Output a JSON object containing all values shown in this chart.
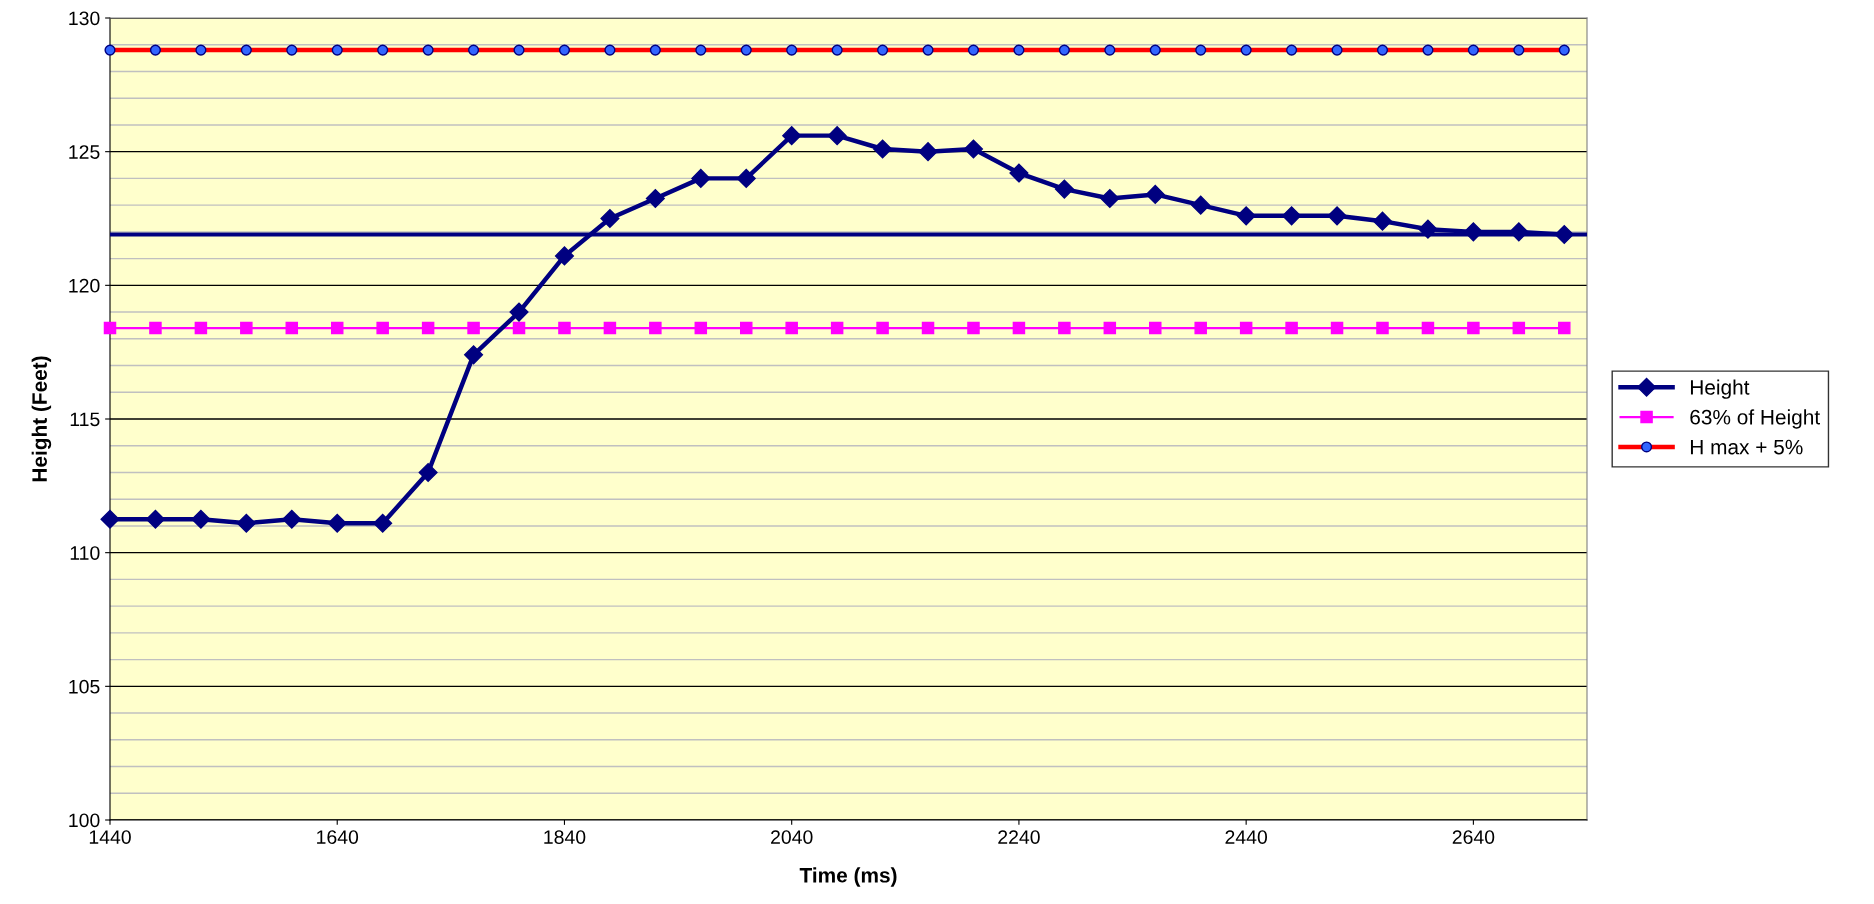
{
  "chart_data": {
    "type": "line",
    "xlabel": "Time (ms)",
    "ylabel": "Height (Feet)",
    "x": [
      1440,
      1480,
      1520,
      1560,
      1600,
      1640,
      1680,
      1720,
      1760,
      1800,
      1840,
      1880,
      1920,
      1960,
      2000,
      2040,
      2080,
      2120,
      2160,
      2200,
      2240,
      2280,
      2320,
      2360,
      2400,
      2440,
      2480,
      2520,
      2560,
      2600,
      2640,
      2680,
      2720
    ],
    "series": [
      {
        "name": "Height",
        "color": "#000080",
        "marker": "diamond",
        "values": [
          111.25,
          111.25,
          111.25,
          111.1,
          111.25,
          111.1,
          111.1,
          113.0,
          117.4,
          119.0,
          121.1,
          122.5,
          123.25,
          124.0,
          124.0,
          125.6,
          125.6,
          125.1,
          125.0,
          125.1,
          124.2,
          123.6,
          123.25,
          123.4,
          123.0,
          122.6,
          122.6,
          122.6,
          122.4,
          122.1,
          122.0,
          122.0,
          121.9
        ]
      },
      {
        "name": "63% of Height",
        "color": "#ff00ff",
        "marker": "square",
        "values": [
          118.4,
          118.4,
          118.4,
          118.4,
          118.4,
          118.4,
          118.4,
          118.4,
          118.4,
          118.4,
          118.4,
          118.4,
          118.4,
          118.4,
          118.4,
          118.4,
          118.4,
          118.4,
          118.4,
          118.4,
          118.4,
          118.4,
          118.4,
          118.4,
          118.4,
          118.4,
          118.4,
          118.4,
          118.4,
          118.4,
          118.4,
          118.4,
          118.4
        ]
      },
      {
        "name": "H max + 5%",
        "color": "#ff0000",
        "marker": "circle",
        "values": [
          128.8,
          128.8,
          128.8,
          128.8,
          128.8,
          128.8,
          128.8,
          128.8,
          128.8,
          128.8,
          128.8,
          128.8,
          128.8,
          128.8,
          128.8,
          128.8,
          128.8,
          128.8,
          128.8,
          128.8,
          128.8,
          128.8,
          128.8,
          128.8,
          128.8,
          128.8,
          128.8,
          128.8,
          128.8,
          128.8,
          128.8,
          128.8,
          128.8
        ]
      }
    ],
    "ref_lines": [
      {
        "axis": "y",
        "value": 121.9,
        "color": "#000080"
      }
    ],
    "xlim": [
      1440,
      2740
    ],
    "xticks": [
      1440,
      1640,
      1840,
      2040,
      2240,
      2440,
      2640
    ],
    "ylim": [
      100,
      130
    ],
    "yticks": [
      100,
      {
        "value": 101,
        "label": null
      },
      {
        "value": 102,
        "label": null
      },
      {
        "value": 103,
        "label": null
      },
      {
        "value": 104,
        "label": null
      },
      105,
      {
        "value": 106,
        "label": null
      },
      {
        "value": 107,
        "label": null
      },
      {
        "value": 108,
        "label": null
      },
      {
        "value": 109,
        "label": null
      },
      110,
      {
        "value": 111,
        "label": null
      },
      {
        "value": 112,
        "label": null
      },
      {
        "value": 113,
        "label": null
      },
      {
        "value": 114,
        "label": null
      },
      115,
      {
        "value": 116,
        "label": null
      },
      {
        "value": 117,
        "label": null
      },
      {
        "value": 118,
        "label": null
      },
      {
        "value": 119,
        "label": null
      },
      120,
      {
        "value": 121,
        "label": null
      },
      {
        "value": 122,
        "label": null
      },
      {
        "value": 123,
        "label": null
      },
      {
        "value": 124,
        "label": null
      },
      125,
      {
        "value": 126,
        "label": null
      },
      {
        "value": 127,
        "label": null
      },
      {
        "value": 128,
        "label": null
      },
      {
        "value": 129,
        "label": null
      },
      130
    ],
    "grid": "y",
    "legend": "right",
    "line_style": "solid"
  }
}
